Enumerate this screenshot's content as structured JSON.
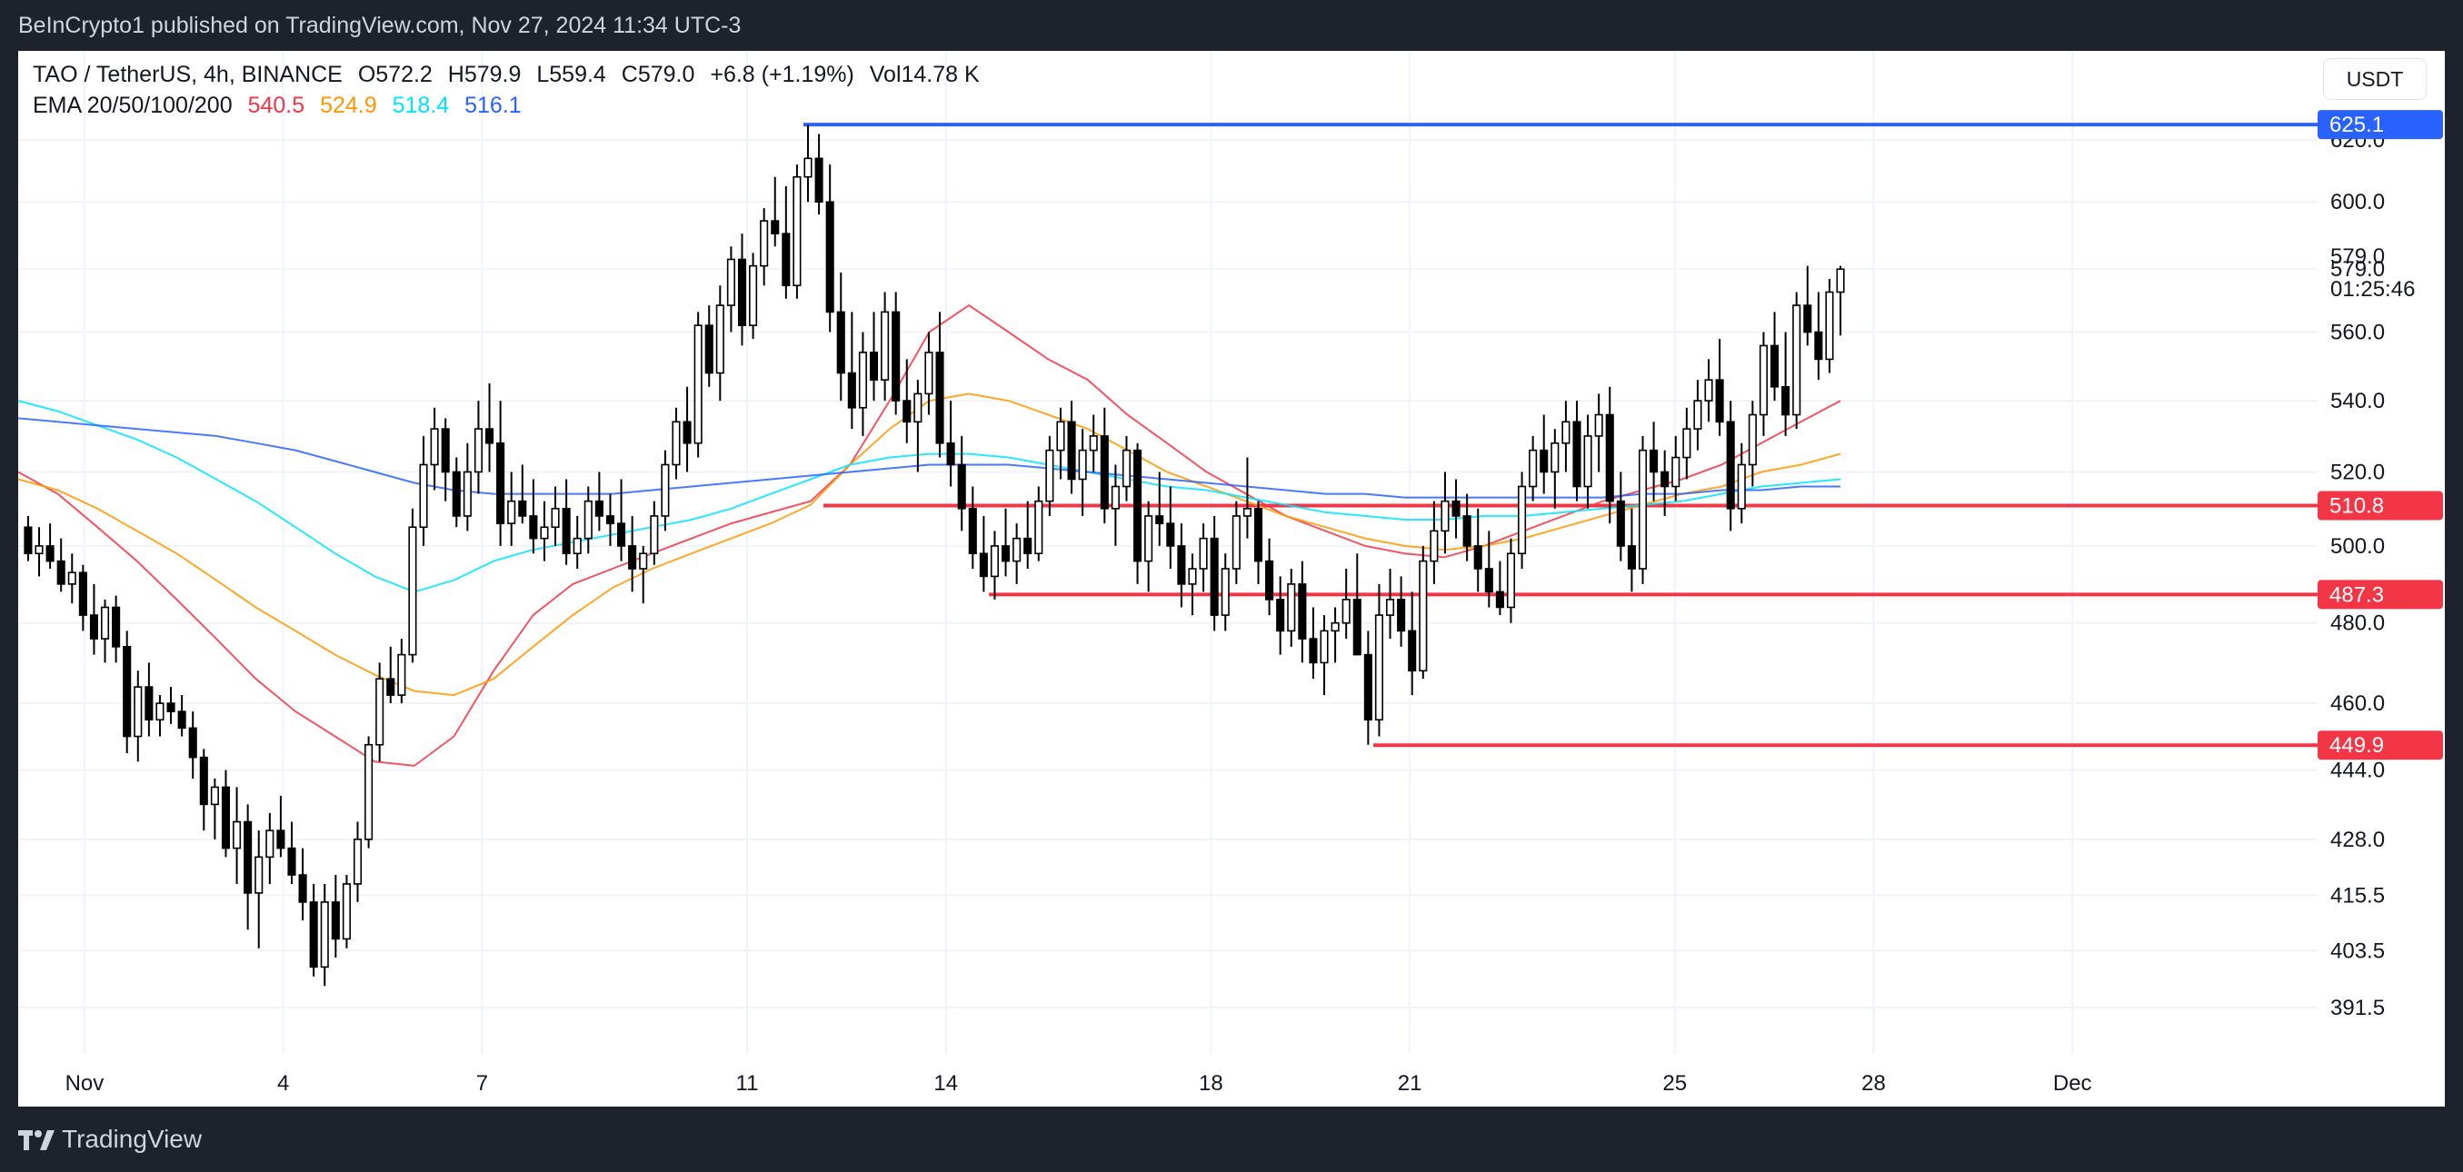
{
  "header": {
    "published": "BeInCrypto1 published on TradingView.com, Nov 27, 2024 11:34 UTC-3"
  },
  "legend": {
    "symbol": "TAO / TetherUS, 4h, BINANCE",
    "open": "O572.2",
    "high": "H579.9",
    "low": "L559.4",
    "close": "C579.0",
    "change": "+6.8 (+1.19%)",
    "volume": "Vol14.78 K",
    "ema_label": "EMA 20/50/100/200",
    "ema20": "540.5",
    "ema50": "524.9",
    "ema100": "518.4",
    "ema200": "516.1"
  },
  "currency_button": "USDT",
  "footer": {
    "brand": "TradingView"
  },
  "countdown": "01:25:46",
  "colors": {
    "ema20": "#f23645",
    "ema50": "#ff9800",
    "ema100": "#00e5ff",
    "ema200": "#2962ff",
    "resistance": "#2962ff",
    "support": "#f23645",
    "candle_up": "#ffffff",
    "candle_down": "#000000"
  },
  "chart_data": {
    "type": "candlestick",
    "timeframe": "4h",
    "x_ticks": [
      {
        "label": "Nov",
        "day": 1
      },
      {
        "label": "4",
        "day": 4
      },
      {
        "label": "7",
        "day": 7
      },
      {
        "label": "11",
        "day": 11
      },
      {
        "label": "14",
        "day": 14
      },
      {
        "label": "18",
        "day": 18
      },
      {
        "label": "21",
        "day": 21
      },
      {
        "label": "25",
        "day": 25
      },
      {
        "label": "28",
        "day": 28
      },
      {
        "label": "Dec",
        "day": 31
      }
    ],
    "y_ticks": [
      "620.0",
      "600.0",
      "579.0",
      "560.0",
      "540.0",
      "520.0",
      "500.0",
      "480.0",
      "460.0",
      "444.0",
      "428.0",
      "415.5",
      "403.5",
      "391.5"
    ],
    "y_scale": "log",
    "y_range": [
      382,
      650
    ],
    "x_range_days": [
      0.0,
      34.7
    ],
    "last_price": "579.0",
    "levels": [
      {
        "value": 625.1,
        "label": "625.1",
        "kind": "resistance",
        "from_day": 11.85
      },
      {
        "value": 510.8,
        "label": "510.8",
        "kind": "support",
        "from_day": 12.15
      },
      {
        "value": 487.3,
        "label": "487.3",
        "kind": "support",
        "from_day": 14.65
      },
      {
        "value": 449.9,
        "label": "449.9",
        "kind": "support",
        "from_day": 20.45
      }
    ],
    "candles_ohlc": [
      [
        505,
        508,
        496,
        498
      ],
      [
        498,
        505,
        492,
        500
      ],
      [
        500,
        506,
        494,
        496
      ],
      [
        496,
        502,
        488,
        490
      ],
      [
        490,
        498,
        485,
        493
      ],
      [
        493,
        495,
        478,
        482
      ],
      [
        482,
        490,
        472,
        476
      ],
      [
        476,
        486,
        470,
        484
      ],
      [
        484,
        487,
        470,
        474
      ],
      [
        474,
        478,
        448,
        452
      ],
      [
        452,
        468,
        446,
        464
      ],
      [
        464,
        470,
        452,
        456
      ],
      [
        456,
        462,
        452,
        460
      ],
      [
        460,
        464,
        455,
        458
      ],
      [
        458,
        462,
        452,
        454
      ],
      [
        454,
        458,
        442,
        447
      ],
      [
        447,
        449,
        430,
        436
      ],
      [
        436,
        442,
        428,
        440
      ],
      [
        440,
        444,
        424,
        426
      ],
      [
        426,
        440,
        418,
        432
      ],
      [
        432,
        436,
        408,
        416
      ],
      [
        416,
        430,
        404,
        424
      ],
      [
        424,
        434,
        418,
        430
      ],
      [
        430,
        438,
        424,
        426
      ],
      [
        426,
        432,
        418,
        420
      ],
      [
        420,
        426,
        410,
        414
      ],
      [
        414,
        418,
        398,
        400
      ],
      [
        400,
        418,
        396,
        414
      ],
      [
        414,
        420,
        402,
        406
      ],
      [
        406,
        420,
        404,
        418
      ],
      [
        418,
        432,
        414,
        428
      ],
      [
        428,
        452,
        426,
        450
      ],
      [
        450,
        470,
        446,
        466
      ],
      [
        466,
        474,
        460,
        462
      ],
      [
        462,
        476,
        460,
        472
      ],
      [
        472,
        510,
        470,
        505
      ],
      [
        505,
        530,
        500,
        522
      ],
      [
        522,
        538,
        515,
        532
      ],
      [
        532,
        535,
        512,
        520
      ],
      [
        520,
        524,
        505,
        508
      ],
      [
        508,
        528,
        504,
        520
      ],
      [
        520,
        540,
        514,
        532
      ],
      [
        532,
        545,
        520,
        528
      ],
      [
        528,
        540,
        500,
        506
      ],
      [
        506,
        520,
        500,
        512
      ],
      [
        512,
        522,
        506,
        508
      ],
      [
        508,
        518,
        498,
        502
      ],
      [
        502,
        512,
        496,
        505
      ],
      [
        505,
        516,
        500,
        510
      ],
      [
        510,
        518,
        495,
        498
      ],
      [
        498,
        508,
        494,
        502
      ],
      [
        502,
        516,
        498,
        512
      ],
      [
        512,
        520,
        504,
        508
      ],
      [
        508,
        514,
        500,
        506
      ],
      [
        506,
        518,
        496,
        500
      ],
      [
        500,
        508,
        488,
        494
      ],
      [
        494,
        500,
        485,
        498
      ],
      [
        498,
        512,
        495,
        508
      ],
      [
        508,
        526,
        504,
        522
      ],
      [
        522,
        538,
        518,
        534
      ],
      [
        534,
        544,
        520,
        528
      ],
      [
        528,
        566,
        524,
        562
      ],
      [
        562,
        568,
        544,
        548
      ],
      [
        548,
        574,
        540,
        568
      ],
      [
        568,
        586,
        560,
        582
      ],
      [
        582,
        590,
        556,
        562
      ],
      [
        562,
        584,
        558,
        580
      ],
      [
        580,
        598,
        574,
        594
      ],
      [
        594,
        608,
        586,
        590
      ],
      [
        590,
        605,
        570,
        574
      ],
      [
        574,
        612,
        570,
        608
      ],
      [
        608,
        625,
        600,
        614
      ],
      [
        614,
        622,
        596,
        600
      ],
      [
        600,
        612,
        560,
        566
      ],
      [
        566,
        578,
        540,
        548
      ],
      [
        548,
        566,
        532,
        538
      ],
      [
        538,
        560,
        530,
        554
      ],
      [
        554,
        566,
        540,
        546
      ],
      [
        546,
        572,
        540,
        566
      ],
      [
        566,
        572,
        536,
        540
      ],
      [
        540,
        552,
        528,
        534
      ],
      [
        534,
        546,
        520,
        542
      ],
      [
        542,
        560,
        536,
        554
      ],
      [
        554,
        566,
        524,
        528
      ],
      [
        528,
        540,
        516,
        522
      ],
      [
        522,
        530,
        504,
        510
      ],
      [
        510,
        516,
        494,
        498
      ],
      [
        498,
        508,
        488,
        492
      ],
      [
        492,
        504,
        486,
        500
      ],
      [
        500,
        510,
        492,
        496
      ],
      [
        496,
        506,
        490,
        502
      ],
      [
        502,
        512,
        494,
        498
      ],
      [
        498,
        516,
        496,
        512
      ],
      [
        512,
        530,
        508,
        526
      ],
      [
        526,
        538,
        518,
        534
      ],
      [
        534,
        540,
        514,
        518
      ],
      [
        518,
        532,
        508,
        526
      ],
      [
        526,
        536,
        520,
        530
      ],
      [
        530,
        538,
        506,
        510
      ],
      [
        510,
        522,
        500,
        516
      ],
      [
        516,
        530,
        512,
        526
      ],
      [
        526,
        528,
        490,
        496
      ],
      [
        496,
        512,
        488,
        508
      ],
      [
        508,
        520,
        500,
        506
      ],
      [
        506,
        516,
        494,
        500
      ],
      [
        500,
        506,
        484,
        490
      ],
      [
        490,
        498,
        482,
        494
      ],
      [
        494,
        506,
        488,
        502
      ],
      [
        502,
        508,
        478,
        482
      ],
      [
        482,
        498,
        478,
        494
      ],
      [
        494,
        512,
        490,
        508
      ],
      [
        508,
        524,
        502,
        510
      ],
      [
        510,
        512,
        490,
        496
      ],
      [
        496,
        502,
        482,
        486
      ],
      [
        486,
        492,
        472,
        478
      ],
      [
        478,
        494,
        474,
        490
      ],
      [
        490,
        496,
        470,
        476
      ],
      [
        476,
        484,
        466,
        470
      ],
      [
        470,
        482,
        462,
        478
      ],
      [
        478,
        484,
        470,
        480
      ],
      [
        480,
        494,
        476,
        486
      ],
      [
        486,
        498,
        480,
        472
      ],
      [
        472,
        478,
        450,
        456
      ],
      [
        456,
        490,
        452,
        482
      ],
      [
        482,
        494,
        476,
        486
      ],
      [
        486,
        492,
        474,
        478
      ],
      [
        478,
        488,
        462,
        468
      ],
      [
        468,
        500,
        466,
        496
      ],
      [
        496,
        512,
        490,
        504
      ],
      [
        504,
        520,
        498,
        512
      ],
      [
        512,
        518,
        502,
        508
      ],
      [
        508,
        514,
        496,
        500
      ],
      [
        500,
        510,
        488,
        494
      ],
      [
        494,
        504,
        484,
        488
      ],
      [
        488,
        496,
        482,
        484
      ],
      [
        484,
        502,
        480,
        498
      ],
      [
        498,
        520,
        494,
        516
      ],
      [
        516,
        530,
        512,
        526
      ],
      [
        526,
        536,
        514,
        520
      ],
      [
        520,
        532,
        510,
        528
      ],
      [
        528,
        540,
        520,
        534
      ],
      [
        534,
        540,
        512,
        516
      ],
      [
        516,
        536,
        510,
        530
      ],
      [
        530,
        542,
        520,
        536
      ],
      [
        536,
        544,
        506,
        512
      ],
      [
        512,
        520,
        496,
        500
      ],
      [
        500,
        510,
        488,
        494
      ],
      [
        494,
        530,
        490,
        526
      ],
      [
        526,
        534,
        512,
        520
      ],
      [
        520,
        526,
        508,
        516
      ],
      [
        516,
        530,
        512,
        524
      ],
      [
        524,
        538,
        518,
        532
      ],
      [
        532,
        546,
        526,
        540
      ],
      [
        540,
        552,
        534,
        546
      ],
      [
        546,
        558,
        530,
        534
      ],
      [
        534,
        540,
        504,
        510
      ],
      [
        510,
        528,
        506,
        522
      ],
      [
        522,
        540,
        516,
        536
      ],
      [
        536,
        560,
        530,
        556
      ],
      [
        556,
        566,
        540,
        544
      ],
      [
        544,
        560,
        530,
        536
      ],
      [
        536,
        572,
        532,
        568
      ],
      [
        568,
        580,
        556,
        560
      ],
      [
        560,
        572,
        546,
        552
      ],
      [
        552,
        576,
        548,
        572
      ],
      [
        572,
        580,
        559,
        579
      ]
    ],
    "ema_series": [
      {
        "name": "EMA 20",
        "value_label": "540.5",
        "values": [
          520,
          514,
          505,
          496,
          486,
          476,
          466,
          458,
          452,
          446,
          445,
          452,
          468,
          482,
          490,
          494,
          498,
          502,
          506,
          509,
          512,
          522,
          540,
          560,
          568,
          560,
          552,
          546,
          536,
          528,
          520,
          514,
          508,
          504,
          500,
          498,
          497,
          500,
          504,
          508,
          512,
          515,
          518,
          522,
          528,
          534,
          540
        ]
      },
      {
        "name": "EMA 50",
        "value_label": "524.9",
        "values": [
          518,
          515,
          510,
          504,
          498,
          491,
          484,
          478,
          472,
          467,
          463,
          462,
          466,
          474,
          482,
          489,
          494,
          498,
          502,
          506,
          511,
          522,
          532,
          540,
          542,
          540,
          536,
          532,
          526,
          520,
          516,
          512,
          508,
          505,
          502,
          500,
          499,
          500,
          502,
          505,
          508,
          511,
          514,
          516,
          520,
          522,
          525
        ]
      },
      {
        "name": "EMA 100",
        "value_label": "518.4",
        "values": [
          540,
          537,
          533,
          529,
          524,
          518,
          512,
          505,
          498,
          492,
          488,
          491,
          496,
          499,
          501,
          503,
          505,
          507,
          510,
          514,
          518,
          522,
          524,
          525,
          525,
          524,
          522,
          520,
          518,
          516,
          515,
          513,
          511,
          509,
          508,
          507,
          507,
          508,
          508,
          509,
          510,
          511,
          512,
          514,
          516,
          517,
          518
        ]
      },
      {
        "name": "EMA 200",
        "value_label": "516.1",
        "values": [
          535,
          534,
          533,
          532,
          531,
          530,
          528,
          526,
          523,
          520,
          517,
          515,
          514,
          514,
          514,
          514,
          515,
          516,
          517,
          518,
          519,
          520,
          521,
          522,
          522,
          522,
          521,
          520,
          519,
          518,
          517,
          516,
          515,
          514,
          514,
          513,
          513,
          513,
          513,
          513,
          513,
          514,
          514,
          515,
          515,
          516,
          516
        ]
      }
    ]
  }
}
